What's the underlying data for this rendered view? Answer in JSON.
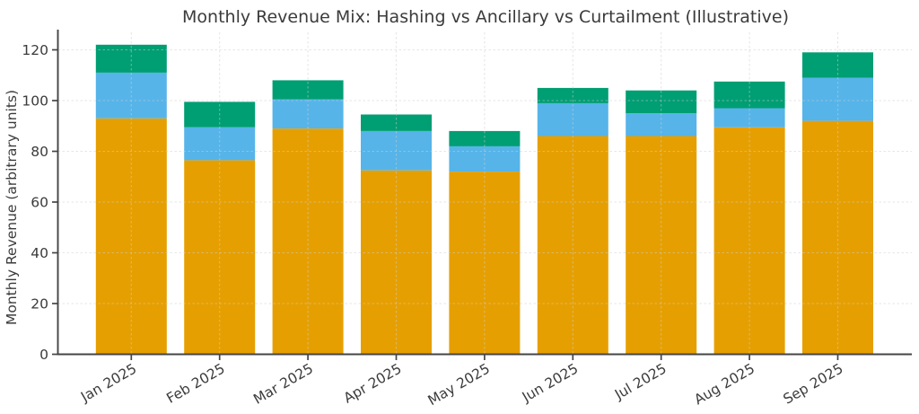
{
  "chart_data": {
    "type": "bar",
    "stacked": true,
    "title": "Monthly Revenue Mix: Hashing vs Ancillary vs Curtailment (Illustrative)",
    "xlabel": "",
    "ylabel": "Monthly Revenue (arbitrary units)",
    "categories": [
      "Jan 2025",
      "Feb 2025",
      "Mar 2025",
      "Apr 2025",
      "May 2025",
      "Jun 2025",
      "Jul 2025",
      "Aug 2025",
      "Sep 2025"
    ],
    "series": [
      {
        "name": "Hashing",
        "color": "#E69F00",
        "values": [
          93,
          76.5,
          89,
          72.5,
          72,
          86,
          86,
          89.5,
          92
        ]
      },
      {
        "name": "Ancillary",
        "color": "#56B4E9",
        "values": [
          18,
          13,
          11.5,
          15.5,
          10,
          13,
          9,
          7.5,
          17
        ]
      },
      {
        "name": "Curtailment",
        "color": "#009E73",
        "values": [
          11,
          10,
          7.5,
          6.5,
          6,
          6,
          9,
          10.5,
          10
        ]
      }
    ],
    "ylim": [
      0,
      126.9
    ],
    "yticks": [
      0,
      20,
      40,
      60,
      80,
      100,
      120
    ],
    "grid": true,
    "grid_style": "dashed",
    "legend": "none",
    "colors": {
      "text": "#3B3B3B",
      "spine": "#454545",
      "grid": "#CFCFCF",
      "background": "#FFFFFF"
    }
  }
}
